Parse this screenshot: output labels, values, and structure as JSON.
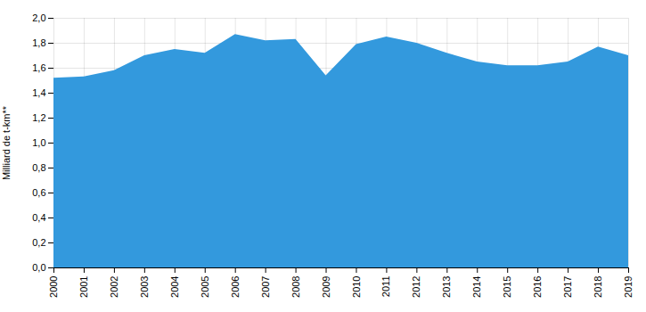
{
  "chart_data": {
    "type": "area",
    "x": [
      2000,
      2001,
      2002,
      2003,
      2004,
      2005,
      2006,
      2007,
      2008,
      2009,
      2010,
      2011,
      2012,
      2013,
      2014,
      2015,
      2016,
      2017,
      2018,
      2019
    ],
    "values": [
      1.52,
      1.53,
      1.58,
      1.7,
      1.75,
      1.72,
      1.87,
      1.82,
      1.83,
      1.54,
      1.79,
      1.85,
      1.8,
      1.72,
      1.65,
      1.62,
      1.62,
      1.65,
      1.77,
      1.7
    ],
    "color": "#3399dd",
    "ylabel": "Milliard de t-km**",
    "xlim": [
      2000,
      2019
    ],
    "xticks": [
      2000,
      2001,
      2002,
      2003,
      2004,
      2005,
      2006,
      2007,
      2008,
      2009,
      2010,
      2011,
      2012,
      2013,
      2014,
      2015,
      2016,
      2017,
      2018,
      2019
    ],
    "ylim": [
      0,
      2
    ],
    "yticks": [
      {
        "value": 0,
        "label": "0,0"
      },
      {
        "value": 0.2,
        "label": "0,2"
      },
      {
        "value": 0.4,
        "label": "0,4"
      },
      {
        "value": 0.6,
        "label": "0,6"
      },
      {
        "value": 0.8,
        "label": "0,8"
      },
      {
        "value": 1.0,
        "label": "1,0"
      },
      {
        "value": 1.2,
        "label": "1,2"
      },
      {
        "value": 1.4,
        "label": "1,4"
      },
      {
        "value": 1.6,
        "label": "1,6"
      },
      {
        "value": 1.8,
        "label": "1,8"
      },
      {
        "value": 2.0,
        "label": "2,0"
      }
    ],
    "grid": true
  }
}
